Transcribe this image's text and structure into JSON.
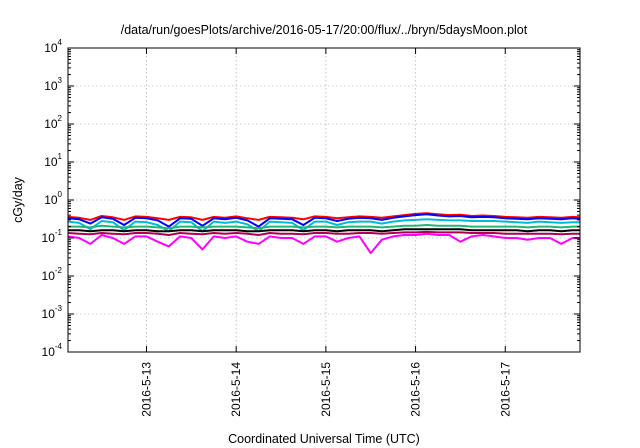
{
  "chart_data": {
    "type": "line",
    "title": "/data/run/goesPlots/archive/2016-05-17/20:00/flux/../bryn/5daysMoon.plot",
    "xlabel": "Coordinated Universal Time (UTC)",
    "ylabel": "cGy/day",
    "y_scale": "log",
    "ylim": [
      0.0001,
      10000
    ],
    "yticks": [
      {
        "base": "10",
        "exp": "-4",
        "value": 0.0001
      },
      {
        "base": "10",
        "exp": "-3",
        "value": 0.001
      },
      {
        "base": "10",
        "exp": "-2",
        "value": 0.01
      },
      {
        "base": "10",
        "exp": "-1",
        "value": 0.1
      },
      {
        "base": "10",
        "exp": "0",
        "value": 1
      },
      {
        "base": "10",
        "exp": "1",
        "value": 10
      },
      {
        "base": "10",
        "exp": "2",
        "value": 100
      },
      {
        "base": "10",
        "exp": "3",
        "value": 1000
      },
      {
        "base": "10",
        "exp": "4",
        "value": 10000
      }
    ],
    "xlim": [
      "2016-05-12 03:00",
      "2016-05-17 20:00"
    ],
    "xticks": [
      {
        "label": "2016-5-13",
        "value": "2016-05-13 00:00"
      },
      {
        "label": "2016-5-14",
        "value": "2016-05-14 00:00"
      },
      {
        "label": "2016-5-15",
        "value": "2016-05-15 00:00"
      },
      {
        "label": "2016-5-16",
        "value": "2016-05-16 00:00"
      },
      {
        "label": "2016-5-17",
        "value": "2016-05-17 00:00"
      }
    ],
    "grid": true,
    "legend": "none",
    "x": [
      "2016-05-12 03:00",
      "2016-05-12 06:00",
      "2016-05-12 09:00",
      "2016-05-12 12:00",
      "2016-05-12 15:00",
      "2016-05-12 18:00",
      "2016-05-12 21:00",
      "2016-05-13 00:00",
      "2016-05-13 03:00",
      "2016-05-13 06:00",
      "2016-05-13 09:00",
      "2016-05-13 12:00",
      "2016-05-13 15:00",
      "2016-05-13 18:00",
      "2016-05-13 21:00",
      "2016-05-14 00:00",
      "2016-05-14 03:00",
      "2016-05-14 06:00",
      "2016-05-14 09:00",
      "2016-05-14 12:00",
      "2016-05-14 15:00",
      "2016-05-14 18:00",
      "2016-05-14 21:00",
      "2016-05-15 00:00",
      "2016-05-15 03:00",
      "2016-05-15 06:00",
      "2016-05-15 09:00",
      "2016-05-15 12:00",
      "2016-05-15 15:00",
      "2016-05-15 18:00",
      "2016-05-15 21:00",
      "2016-05-16 00:00",
      "2016-05-16 03:00",
      "2016-05-16 06:00",
      "2016-05-16 09:00",
      "2016-05-16 12:00",
      "2016-05-16 15:00",
      "2016-05-16 18:00",
      "2016-05-16 21:00",
      "2016-05-17 00:00",
      "2016-05-17 03:00",
      "2016-05-17 06:00",
      "2016-05-17 09:00",
      "2016-05-17 12:00",
      "2016-05-17 15:00",
      "2016-05-17 18:00",
      "2016-05-17 20:00"
    ],
    "series": [
      {
        "color": "#ff0000",
        "values": [
          0.36,
          0.34,
          0.3,
          0.38,
          0.35,
          0.3,
          0.37,
          0.36,
          0.33,
          0.3,
          0.36,
          0.35,
          0.3,
          0.36,
          0.34,
          0.37,
          0.33,
          0.3,
          0.36,
          0.35,
          0.34,
          0.31,
          0.37,
          0.36,
          0.33,
          0.35,
          0.37,
          0.36,
          0.34,
          0.37,
          0.4,
          0.43,
          0.45,
          0.42,
          0.4,
          0.41,
          0.38,
          0.39,
          0.38,
          0.36,
          0.35,
          0.34,
          0.36,
          0.35,
          0.34,
          0.36,
          0.35
        ]
      },
      {
        "color": "#0000ff",
        "values": [
          0.33,
          0.31,
          0.24,
          0.35,
          0.32,
          0.22,
          0.34,
          0.33,
          0.29,
          0.2,
          0.33,
          0.32,
          0.21,
          0.33,
          0.31,
          0.34,
          0.29,
          0.2,
          0.33,
          0.32,
          0.31,
          0.22,
          0.34,
          0.33,
          0.28,
          0.32,
          0.34,
          0.33,
          0.3,
          0.34,
          0.37,
          0.4,
          0.42,
          0.39,
          0.37,
          0.38,
          0.35,
          0.36,
          0.35,
          0.33,
          0.32,
          0.31,
          0.33,
          0.32,
          0.31,
          0.33,
          0.32
        ]
      },
      {
        "color": "#00bcd4",
        "values": [
          0.27,
          0.25,
          0.17,
          0.28,
          0.26,
          0.16,
          0.27,
          0.26,
          0.22,
          0.15,
          0.27,
          0.26,
          0.15,
          0.27,
          0.25,
          0.27,
          0.23,
          0.15,
          0.27,
          0.26,
          0.25,
          0.16,
          0.27,
          0.27,
          0.22,
          0.26,
          0.27,
          0.27,
          0.24,
          0.27,
          0.29,
          0.3,
          0.31,
          0.3,
          0.29,
          0.29,
          0.28,
          0.28,
          0.28,
          0.27,
          0.26,
          0.25,
          0.27,
          0.26,
          0.25,
          0.26,
          0.26
        ]
      },
      {
        "color": "#22b573",
        "values": [
          0.2,
          0.2,
          0.19,
          0.21,
          0.2,
          0.19,
          0.2,
          0.2,
          0.19,
          0.18,
          0.2,
          0.2,
          0.19,
          0.2,
          0.2,
          0.2,
          0.19,
          0.18,
          0.2,
          0.2,
          0.2,
          0.19,
          0.2,
          0.2,
          0.19,
          0.2,
          0.2,
          0.2,
          0.19,
          0.2,
          0.21,
          0.21,
          0.22,
          0.21,
          0.21,
          0.21,
          0.2,
          0.2,
          0.2,
          0.2,
          0.2,
          0.19,
          0.2,
          0.2,
          0.19,
          0.2,
          0.2
        ]
      },
      {
        "color": "#000000",
        "values": [
          0.16,
          0.16,
          0.15,
          0.16,
          0.16,
          0.15,
          0.16,
          0.16,
          0.15,
          0.15,
          0.16,
          0.16,
          0.15,
          0.16,
          0.16,
          0.16,
          0.15,
          0.15,
          0.16,
          0.16,
          0.16,
          0.15,
          0.16,
          0.16,
          0.15,
          0.16,
          0.16,
          0.16,
          0.15,
          0.16,
          0.17,
          0.17,
          0.17,
          0.17,
          0.17,
          0.17,
          0.16,
          0.16,
          0.16,
          0.16,
          0.16,
          0.15,
          0.16,
          0.16,
          0.15,
          0.16,
          0.16
        ]
      },
      {
        "color": "#b00050",
        "values": [
          0.135,
          0.13,
          0.125,
          0.135,
          0.13,
          0.125,
          0.135,
          0.135,
          0.13,
          0.12,
          0.135,
          0.13,
          0.125,
          0.135,
          0.13,
          0.135,
          0.13,
          0.12,
          0.135,
          0.13,
          0.13,
          0.125,
          0.135,
          0.135,
          0.13,
          0.13,
          0.135,
          0.135,
          0.13,
          0.135,
          0.14,
          0.14,
          0.145,
          0.14,
          0.14,
          0.14,
          0.135,
          0.135,
          0.135,
          0.13,
          0.13,
          0.13,
          0.13,
          0.13,
          0.125,
          0.13,
          0.13
        ]
      },
      {
        "color": "#ff00ff",
        "values": [
          0.11,
          0.1,
          0.07,
          0.12,
          0.1,
          0.07,
          0.11,
          0.11,
          0.08,
          0.06,
          0.11,
          0.1,
          0.05,
          0.11,
          0.1,
          0.11,
          0.08,
          0.07,
          0.11,
          0.1,
          0.1,
          0.07,
          0.11,
          0.11,
          0.08,
          0.1,
          0.11,
          0.04,
          0.09,
          0.11,
          0.12,
          0.12,
          0.13,
          0.12,
          0.12,
          0.08,
          0.11,
          0.12,
          0.11,
          0.1,
          0.1,
          0.09,
          0.1,
          0.1,
          0.07,
          0.1,
          0.1
        ]
      }
    ]
  }
}
